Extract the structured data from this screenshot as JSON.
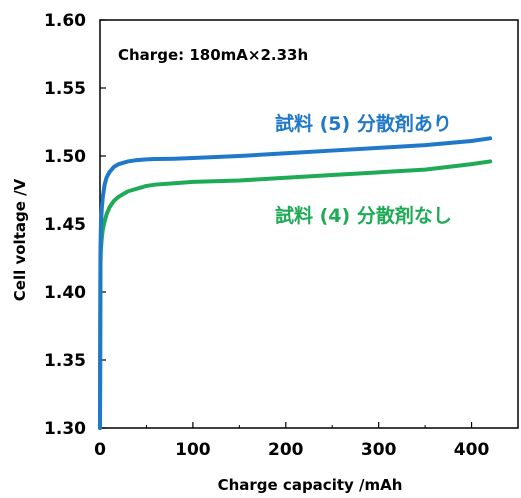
{
  "chart_data": {
    "type": "line",
    "title": "",
    "annotation": "Charge: 180mA×2.33h",
    "xlabel": "Charge capacity /mAh",
    "ylabel": "Cell voltage /V",
    "xlim": [
      0,
      450
    ],
    "ylim": [
      1.3,
      1.6
    ],
    "x_ticks": [
      "0",
      "100",
      "200",
      "300",
      "400"
    ],
    "y_ticks": [
      "1.30",
      "1.35",
      "1.40",
      "1.45",
      "1.50",
      "1.55",
      "1.60"
    ],
    "grid": false,
    "series": [
      {
        "name": "試料 (5) 分散剤あり",
        "color": "#1F78C8",
        "x": [
          0,
          0.5,
          1,
          2,
          3,
          5,
          7,
          10,
          15,
          20,
          30,
          40,
          50,
          60,
          80,
          100,
          150,
          200,
          250,
          300,
          350,
          400,
          420
        ],
        "y": [
          1.3,
          1.43,
          1.45,
          1.462,
          1.47,
          1.479,
          1.484,
          1.488,
          1.492,
          1.494,
          1.496,
          1.497,
          1.4975,
          1.4978,
          1.498,
          1.4985,
          1.5,
          1.502,
          1.504,
          1.506,
          1.508,
          1.511,
          1.513
        ]
      },
      {
        "name": "試料 (4) 分散剤なし",
        "color": "#1FAA55",
        "x": [
          0,
          0.5,
          1,
          2,
          3,
          5,
          7,
          10,
          15,
          20,
          30,
          40,
          50,
          60,
          80,
          100,
          150,
          200,
          250,
          300,
          350,
          400,
          420
        ],
        "y": [
          1.3,
          1.42,
          1.432,
          1.44,
          1.446,
          1.452,
          1.457,
          1.462,
          1.467,
          1.47,
          1.474,
          1.476,
          1.478,
          1.479,
          1.48,
          1.481,
          1.482,
          1.484,
          1.486,
          1.488,
          1.49,
          1.494,
          1.496
        ]
      }
    ]
  }
}
